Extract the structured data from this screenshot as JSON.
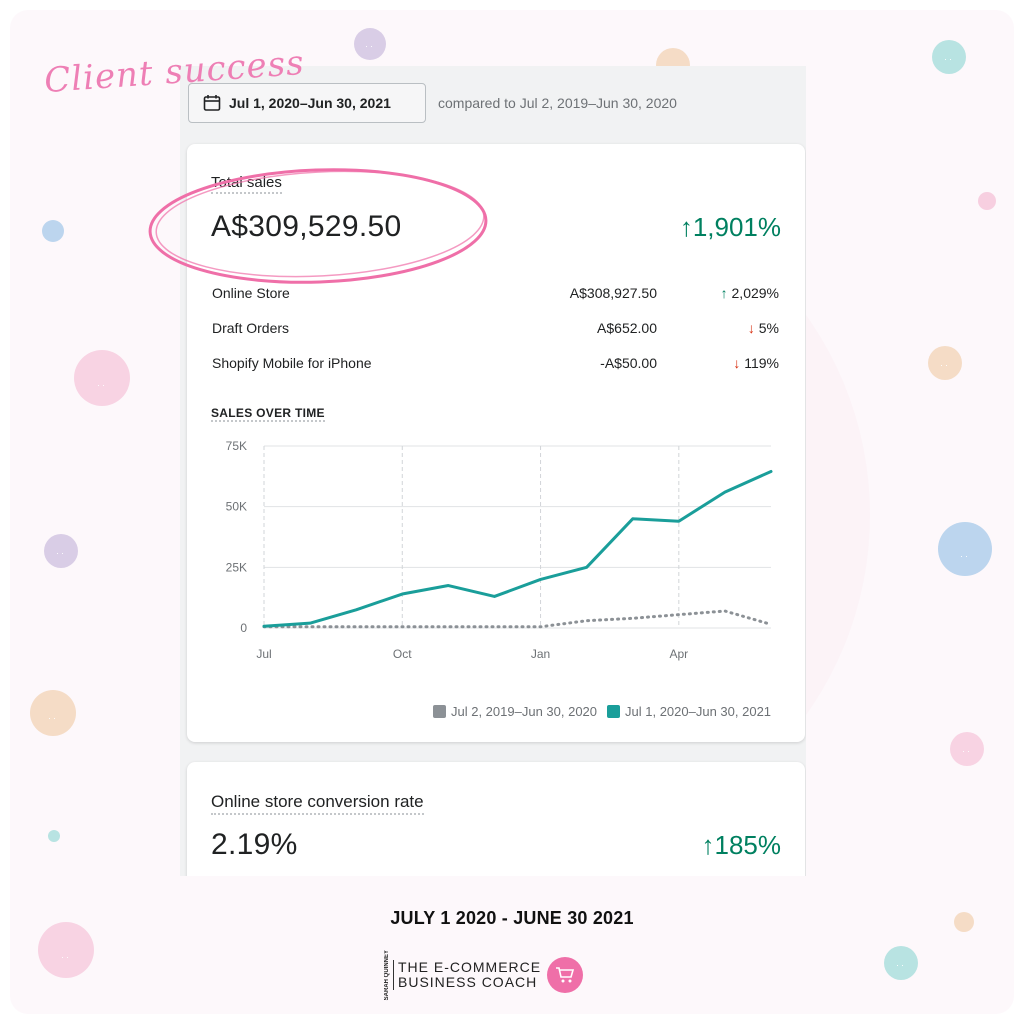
{
  "decor": {
    "script_title": "Client success"
  },
  "toolbar": {
    "date_range_button": "Jul 1, 2020–Jun 30, 2021",
    "compare_text": "compared to Jul 2, 2019–Jun 30, 2020"
  },
  "total_sales": {
    "label": "Total sales",
    "value": "A$309,529.50",
    "change": "1,901%",
    "rows": [
      {
        "label": "Online Store",
        "value": "A$308,927.50",
        "change": "2,029%",
        "direction": "up"
      },
      {
        "label": "Draft Orders",
        "value": "A$652.00",
        "change": "5%",
        "direction": "down"
      },
      {
        "label": "Shopify Mobile for iPhone",
        "value": "-A$50.00",
        "change": "119%",
        "direction": "down"
      }
    ]
  },
  "sales_over_time": {
    "title": "SALES OVER TIME"
  },
  "chart_data": {
    "type": "line",
    "y_ticks": [
      "75K",
      "50K",
      "25K",
      "0"
    ],
    "x_ticks": [
      "Jul",
      "Oct",
      "Jan",
      "Apr"
    ],
    "ylim": [
      0,
      75000
    ],
    "grid": true,
    "legend_placement": "bottom-right",
    "series": [
      {
        "name": "Jul 2, 2019–Jun 30, 2020",
        "color": "#8c9196",
        "style": "dotted",
        "x": [
          0,
          1,
          2,
          3,
          4,
          5,
          6,
          7,
          8,
          9,
          10,
          11
        ],
        "values": [
          500,
          500,
          500,
          500,
          500,
          500,
          500,
          3000,
          4000,
          5500,
          7000,
          1500
        ]
      },
      {
        "name": "Jul 1, 2020–Jun 30, 2021",
        "color": "#1a9e9a",
        "style": "solid",
        "x": [
          0,
          1,
          2,
          3,
          4,
          5,
          6,
          7,
          8,
          9,
          10,
          11
        ],
        "values": [
          700,
          2000,
          7500,
          14000,
          17500,
          13000,
          20000,
          25000,
          45000,
          44000,
          56000,
          64500
        ]
      }
    ]
  },
  "conversion": {
    "label": "Online store conversion rate",
    "value": "2.19%",
    "change": "185%"
  },
  "footer": {
    "date_text": "JULY 1 2020 - JUNE 30 2021",
    "brand_side": "SARAH QUINNEY",
    "brand_line1": "THE E-COMMERCE",
    "brand_line2": "BUSINESS COACH"
  },
  "colors": {
    "accent_pink": "#ef6fa8",
    "positive": "#008060",
    "negative": "#d72c0d",
    "teal_series": "#1a9e9a"
  }
}
